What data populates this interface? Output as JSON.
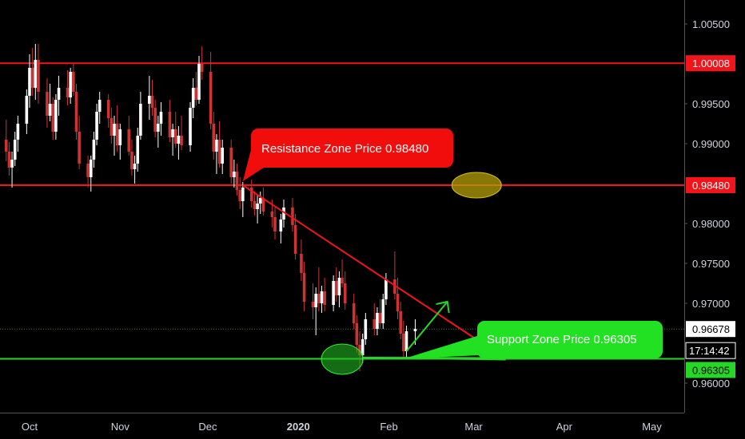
{
  "chart_data": {
    "type": "candlestick",
    "instrument_quote_currency_hint": "",
    "y_axis": {
      "ticks": [
        "1.00500",
        "0.99500",
        "0.99000",
        "0.98000",
        "0.97500",
        "0.97000",
        "0.96000"
      ],
      "tick_values": [
        1.005,
        0.995,
        0.99,
        0.98,
        0.975,
        0.97,
        0.96
      ],
      "range": [
        0.9585,
        1.0079
      ],
      "side": "right"
    },
    "x_axis": {
      "ticks": [
        "Oct",
        "Nov",
        "Dec",
        "2020",
        "Feb",
        "Mar",
        "Apr",
        "May"
      ],
      "tick_dates": [
        "2019-10-01",
        "2019-11-01",
        "2019-12-01",
        "2020-01-01",
        "2020-02-01",
        "2020-03-01",
        "2020-04-01",
        "2020-05-01"
      ],
      "range": [
        "2019-09-23",
        "2020-05-25"
      ]
    },
    "grid": false,
    "candles": [
      [
        "2019-09-23",
        0.9905,
        0.993,
        0.9878,
        0.989
      ],
      [
        "2019-09-24",
        0.989,
        0.9902,
        0.986,
        0.987
      ],
      [
        "2019-09-25",
        0.987,
        0.989,
        0.9845,
        0.988
      ],
      [
        "2019-09-26",
        0.988,
        0.9915,
        0.9872,
        0.9905
      ],
      [
        "2019-09-27",
        0.9905,
        0.9935,
        0.989,
        0.9925
      ],
      [
        "2019-09-30",
        0.9925,
        0.9968,
        0.9912,
        0.996
      ],
      [
        "2019-10-01",
        0.996,
        1.0012,
        0.9945,
        0.9995
      ],
      [
        "2019-10-02",
        0.9995,
        1.002,
        0.996,
        0.997
      ],
      [
        "2019-10-03",
        0.997,
        1.0025,
        0.9955,
        1.0005
      ],
      [
        "2019-10-04",
        1.0005,
        1.0025,
        0.995,
        0.9965
      ],
      [
        "2019-10-07",
        0.9965,
        0.9982,
        0.992,
        0.9935
      ],
      [
        "2019-10-08",
        0.9935,
        0.9975,
        0.9928,
        0.995
      ],
      [
        "2019-10-09",
        0.995,
        0.9958,
        0.9905,
        0.9915
      ],
      [
        "2019-10-10",
        0.9915,
        0.9962,
        0.9905,
        0.9955
      ],
      [
        "2019-10-11",
        0.9955,
        0.9985,
        0.9935,
        0.997
      ],
      [
        "2019-10-14",
        0.997,
        0.9992,
        0.9948,
        0.9958
      ],
      [
        "2019-10-15",
        0.9958,
        0.9995,
        0.995,
        0.999
      ],
      [
        "2019-10-16",
        0.999,
        1.0,
        0.996,
        0.9965
      ],
      [
        "2019-10-17",
        0.9965,
        0.9975,
        0.9905,
        0.9915
      ],
      [
        "2019-10-18",
        0.9915,
        0.9935,
        0.9868,
        0.9875
      ],
      [
        "2019-10-21",
        0.9875,
        0.9885,
        0.9845,
        0.9858
      ],
      [
        "2019-10-22",
        0.9858,
        0.9885,
        0.984,
        0.988
      ],
      [
        "2019-10-23",
        0.988,
        0.9915,
        0.987,
        0.9905
      ],
      [
        "2019-10-24",
        0.9905,
        0.995,
        0.9898,
        0.994
      ],
      [
        "2019-10-25",
        0.994,
        0.9965,
        0.9925,
        0.9955
      ],
      [
        "2019-10-28",
        0.9955,
        0.9962,
        0.992,
        0.9932
      ],
      [
        "2019-10-29",
        0.9932,
        0.9945,
        0.99,
        0.991
      ],
      [
        "2019-10-30",
        0.991,
        0.9935,
        0.9885,
        0.9925
      ],
      [
        "2019-10-31",
        0.9925,
        0.9948,
        0.989,
        0.9898
      ],
      [
        "2019-11-01",
        0.9898,
        0.9925,
        0.988,
        0.9918
      ],
      [
        "2019-11-04",
        0.9918,
        0.9935,
        0.9885,
        0.989
      ],
      [
        "2019-11-05",
        0.989,
        0.9905,
        0.986,
        0.9868
      ],
      [
        "2019-11-06",
        0.9868,
        0.9885,
        0.985,
        0.9875
      ],
      [
        "2019-11-07",
        0.9875,
        0.992,
        0.9865,
        0.991
      ],
      [
        "2019-11-08",
        0.991,
        0.9965,
        0.9905,
        0.995
      ],
      [
        "2019-11-11",
        0.995,
        0.9985,
        0.993,
        0.996
      ],
      [
        "2019-11-12",
        0.996,
        0.998,
        0.9935,
        0.9945
      ],
      [
        "2019-11-13",
        0.9945,
        0.9955,
        0.9908,
        0.9915
      ],
      [
        "2019-11-14",
        0.9915,
        0.9935,
        0.9895,
        0.9925
      ],
      [
        "2019-11-15",
        0.9925,
        0.9952,
        0.991,
        0.994
      ],
      [
        "2019-11-18",
        0.994,
        0.9955,
        0.9902,
        0.9908
      ],
      [
        "2019-11-19",
        0.9908,
        0.9925,
        0.9885,
        0.9918
      ],
      [
        "2019-11-20",
        0.9918,
        0.994,
        0.9895,
        0.99
      ],
      [
        "2019-11-21",
        0.99,
        0.9922,
        0.988,
        0.991
      ],
      [
        "2019-11-22",
        0.991,
        0.9935,
        0.9892,
        0.9898
      ],
      [
        "2019-11-25",
        0.9898,
        0.9952,
        0.989,
        0.9945
      ],
      [
        "2019-11-26",
        0.9945,
        0.9982,
        0.9932,
        0.997
      ],
      [
        "2019-11-27",
        0.997,
        0.999,
        0.9948,
        0.9955
      ],
      [
        "2019-11-28",
        0.9955,
        1.001,
        0.995,
        1.0
      ],
      [
        "2019-11-29",
        1.0,
        1.0022,
        0.998,
        0.999
      ],
      [
        "2019-12-02",
        0.999,
        1.0015,
        0.9918,
        0.9925
      ],
      [
        "2019-12-03",
        0.9925,
        0.994,
        0.988,
        0.989
      ],
      [
        "2019-12-04",
        0.989,
        0.9912,
        0.9862,
        0.9905
      ],
      [
        "2019-12-05",
        0.9905,
        0.9928,
        0.987,
        0.9875
      ],
      [
        "2019-12-06",
        0.9875,
        0.9905,
        0.9862,
        0.9895
      ],
      [
        "2019-12-09",
        0.9895,
        0.9905,
        0.985,
        0.9858
      ],
      [
        "2019-12-10",
        0.9858,
        0.988,
        0.9845,
        0.9865
      ],
      [
        "2019-12-11",
        0.9865,
        0.9875,
        0.9835,
        0.9842
      ],
      [
        "2019-12-12",
        0.9842,
        0.9858,
        0.9818,
        0.9828
      ],
      [
        "2019-12-13",
        0.9828,
        0.9852,
        0.9808,
        0.9845
      ],
      [
        "2019-12-16",
        0.9845,
        0.9855,
        0.982,
        0.9828
      ],
      [
        "2019-12-17",
        0.9828,
        0.984,
        0.981,
        0.9818
      ],
      [
        "2019-12-18",
        0.9818,
        0.9835,
        0.98,
        0.9825
      ],
      [
        "2019-12-19",
        0.9825,
        0.984,
        0.9812,
        0.9832
      ],
      [
        "2019-12-20",
        0.9832,
        0.9845,
        0.981,
        0.9815
      ],
      [
        "2019-12-23",
        0.9815,
        0.983,
        0.9795,
        0.9808
      ],
      [
        "2019-12-24",
        0.9808,
        0.982,
        0.978,
        0.979
      ],
      [
        "2019-12-26",
        0.979,
        0.9812,
        0.9775,
        0.9805
      ],
      [
        "2019-12-27",
        0.9805,
        0.983,
        0.9795,
        0.982
      ],
      [
        "2019-12-30",
        0.982,
        0.9832,
        0.979,
        0.9798
      ],
      [
        "2019-12-31",
        0.9798,
        0.9812,
        0.9755,
        0.9762
      ],
      [
        "2020-01-02",
        0.9762,
        0.978,
        0.9728,
        0.9738
      ],
      [
        "2020-01-03",
        0.9738,
        0.9752,
        0.969,
        0.9702
      ],
      [
        "2020-01-06",
        0.9702,
        0.9725,
        0.968,
        0.9695
      ],
      [
        "2020-01-07",
        0.9695,
        0.972,
        0.966,
        0.9712
      ],
      [
        "2020-01-08",
        0.9712,
        0.9745,
        0.969,
        0.97
      ],
      [
        "2020-01-09",
        0.97,
        0.9722,
        0.9688,
        0.9715
      ],
      [
        "2020-01-10",
        0.9715,
        0.9732,
        0.969,
        0.9698
      ],
      [
        "2020-01-13",
        0.9698,
        0.9735,
        0.969,
        0.9728
      ],
      [
        "2020-01-14",
        0.9728,
        0.9745,
        0.9702,
        0.971
      ],
      [
        "2020-01-15",
        0.971,
        0.974,
        0.9695,
        0.9732
      ],
      [
        "2020-01-16",
        0.9732,
        0.9755,
        0.972,
        0.9725
      ],
      [
        "2020-01-17",
        0.9725,
        0.974,
        0.9692,
        0.97
      ],
      [
        "2020-01-20",
        0.97,
        0.9712,
        0.9668,
        0.9675
      ],
      [
        "2020-01-21",
        0.9675,
        0.9685,
        0.9638,
        0.9648
      ],
      [
        "2020-01-22",
        0.9648,
        0.9665,
        0.9615,
        0.9635
      ],
      [
        "2020-01-23",
        0.9635,
        0.9662,
        0.9625,
        0.9655
      ],
      [
        "2020-01-24",
        0.9655,
        0.9688,
        0.9648,
        0.968
      ],
      [
        "2020-01-27",
        0.968,
        0.97,
        0.966,
        0.9668
      ],
      [
        "2020-01-28",
        0.9668,
        0.9695,
        0.966,
        0.9688
      ],
      [
        "2020-01-29",
        0.9688,
        0.9705,
        0.9668,
        0.9675
      ],
      [
        "2020-01-30",
        0.9675,
        0.9712,
        0.9668,
        0.9705
      ],
      [
        "2020-01-31",
        0.9705,
        0.9738,
        0.9698,
        0.973
      ],
      [
        "2020-02-03",
        0.973,
        0.9765,
        0.9705,
        0.9712
      ],
      [
        "2020-02-04",
        0.9712,
        0.9732,
        0.968,
        0.969
      ],
      [
        "2020-02-05",
        0.969,
        0.9702,
        0.9655,
        0.9662
      ],
      [
        "2020-02-06",
        0.9662,
        0.9678,
        0.963,
        0.964
      ],
      [
        "2020-02-07",
        0.964,
        0.9672,
        0.9632,
        0.9665
      ],
      [
        "2020-02-10",
        0.9665,
        0.968,
        0.9648,
        0.9668
      ]
    ],
    "horizontal_lines": [
      {
        "price": 1.00008,
        "label": "1.00008",
        "color": "#f2141b"
      },
      {
        "price": 0.9848,
        "label": "0.98480",
        "color": "#f2141b"
      },
      {
        "price": 0.96305,
        "label": "0.96305",
        "color": "#26d726"
      }
    ],
    "last_price": {
      "label": "0.96678",
      "countdown": "17:14:42",
      "color": "#ffffff"
    },
    "trendline": {
      "from": [
        "2019-12-13",
        0.9848
      ],
      "to": [
        "2020-03-12",
        0.96305
      ],
      "color": "#f2141b"
    },
    "support_line": {
      "from": [
        "2020-01-23",
        0.9632
      ],
      "to": [
        "2020-03-12",
        0.96305
      ],
      "color": "#26d726"
    },
    "projection_arrow": {
      "from": [
        "2020-02-07",
        0.964
      ],
      "to": [
        "2020-02-21",
        0.9702
      ],
      "color": "#26d726"
    },
    "annotations": [
      {
        "text": "Resistance Zone Price 0.98480",
        "anchor": [
          "2019-12-13",
          0.9848
        ],
        "color": "#f20d0d",
        "text_color": "#ffffff"
      },
      {
        "text": "Support Zone Price 0.96305",
        "anchor": [
          "2020-02-06",
          0.96305
        ],
        "color": "#22e022",
        "text_color": "#ffffff"
      }
    ],
    "highlight_ellipses": [
      {
        "center": [
          "2020-03-02",
          0.9848
        ],
        "color": "#b59f0b"
      },
      {
        "center": [
          "2020-01-16",
          0.963
        ],
        "color": "#22b522"
      }
    ],
    "colors": {
      "up": "#ffffff",
      "down": "#cc3333",
      "background": "#000000",
      "axis_text": "#d1d4dc"
    }
  }
}
